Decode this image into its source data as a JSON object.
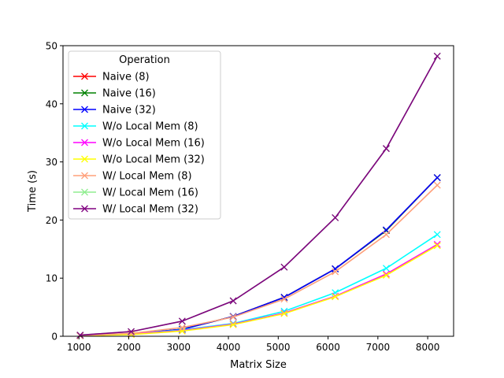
{
  "chart_data": {
    "type": "line",
    "title": "",
    "xlabel": "Matrix Size",
    "ylabel": "Time (s)",
    "xlim": [
      680,
      8520
    ],
    "ylim": [
      0,
      50
    ],
    "xticks": [
      1000,
      2000,
      3000,
      4000,
      5000,
      6000,
      7000,
      8000
    ],
    "yticks": [
      0,
      10,
      20,
      30,
      40,
      50
    ],
    "grid": false,
    "legend": {
      "title": "Operation",
      "placement": "top-left"
    },
    "marker": "x",
    "x": [
      1024,
      2048,
      3072,
      4096,
      5120,
      6144,
      7168,
      8192
    ],
    "series": [
      {
        "name": "Naive  (8)",
        "color": "#ff0000",
        "values": [
          0.1,
          0.4,
          1.2,
          3.4,
          6.7,
          11.6,
          18.2,
          27.3
        ]
      },
      {
        "name": "Naive  (16)",
        "color": "#008000",
        "values": [
          0.1,
          0.4,
          1.2,
          3.4,
          6.7,
          11.6,
          18.2,
          27.3
        ]
      },
      {
        "name": "Naive  (32)",
        "color": "#0000ff",
        "values": [
          0.1,
          0.4,
          1.2,
          3.4,
          6.7,
          11.6,
          18.3,
          27.3
        ]
      },
      {
        "name": "W/o Local Mem  (8)",
        "color": "#00ffff",
        "values": [
          0.1,
          0.4,
          1.1,
          2.2,
          4.3,
          7.5,
          11.7,
          17.5
        ]
      },
      {
        "name": "W/o Local Mem  (16)",
        "color": "#ff00ff",
        "values": [
          0.1,
          0.4,
          1.0,
          2.1,
          4.0,
          6.9,
          10.7,
          15.8
        ]
      },
      {
        "name": "W/o Local Mem  (32)",
        "color": "#ffff00",
        "values": [
          0.1,
          0.3,
          0.9,
          2.0,
          3.9,
          6.8,
          10.5,
          15.6
        ]
      },
      {
        "name": "W/ Local Mem (8)",
        "color": "#ffa07a",
        "values": [
          0.1,
          0.5,
          1.5,
          3.3,
          6.4,
          11.1,
          17.5,
          26.0
        ]
      },
      {
        "name": "W/ Local Mem (16)",
        "color": "#90ee90",
        "values": [
          0.2,
          0.8,
          2.6,
          6.1,
          11.9,
          20.4,
          32.3,
          48.2
        ]
      },
      {
        "name": "W/ Local Mem (32)",
        "color": "#800080",
        "values": [
          0.2,
          0.8,
          2.6,
          6.1,
          11.9,
          20.4,
          32.3,
          48.2
        ]
      }
    ]
  }
}
